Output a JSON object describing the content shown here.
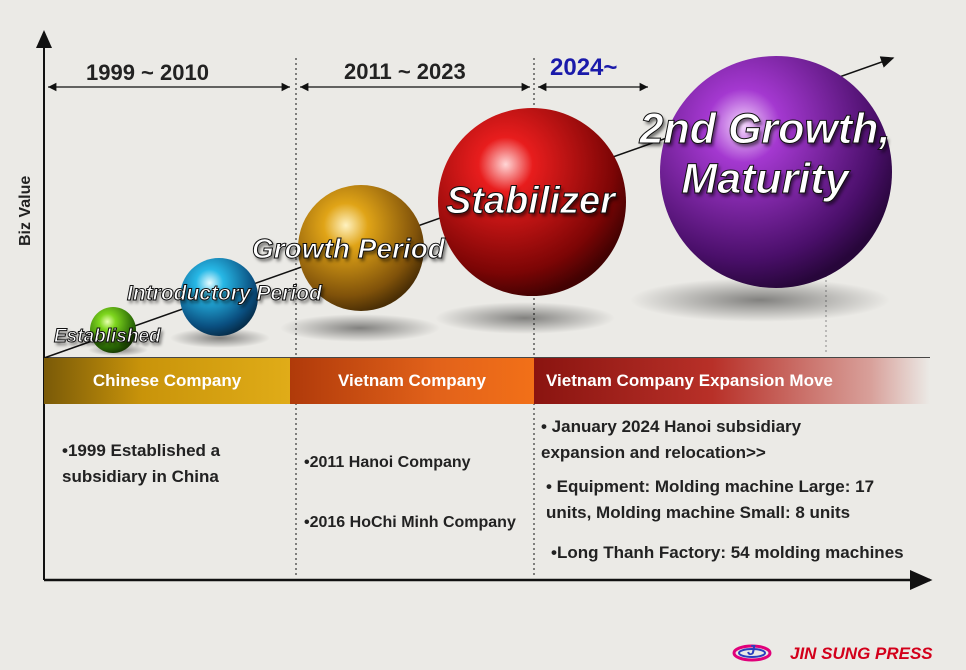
{
  "axes": {
    "y_label": "Biz Value"
  },
  "periods": [
    {
      "label": "1999 ~ 2010"
    },
    {
      "label": "2011 ~ 2023"
    },
    {
      "label": "2024~"
    }
  ],
  "stages": [
    {
      "label": "Established"
    },
    {
      "label": "Introductory Period"
    },
    {
      "label": "Growth Period"
    },
    {
      "label": "Stabilizer"
    },
    {
      "label": "2nd Growth,",
      "label2": "Maturity"
    }
  ],
  "bands": [
    {
      "label": "Chinese Company"
    },
    {
      "label": "Vietnam Company"
    },
    {
      "label": "Vietnam Company Expansion Move"
    }
  ],
  "details": {
    "china": [
      "•1999 Established a",
      "subsidiary in China"
    ],
    "vietnam": [
      "•2011 Hanoi Company",
      "•2016 HoChi Minh Company"
    ],
    "expansion": [
      "• January 2024 Hanoi subsidiary",
      "expansion and relocation>>",
      "• Equipment: Molding machine Large: 17",
      "units, Molding machine Small: 8 units",
      "•Long Thanh Factory: 54 molding machines"
    ]
  },
  "logo": {
    "mark": "J",
    "text": "JIN SUNG PRESS"
  },
  "colors": {
    "china_band": "#c9940a",
    "vietnam_band": "#d85a10",
    "expansion_band": "#a8201a",
    "period_current": "#1a1aaa",
    "brand": "#d3001b"
  }
}
